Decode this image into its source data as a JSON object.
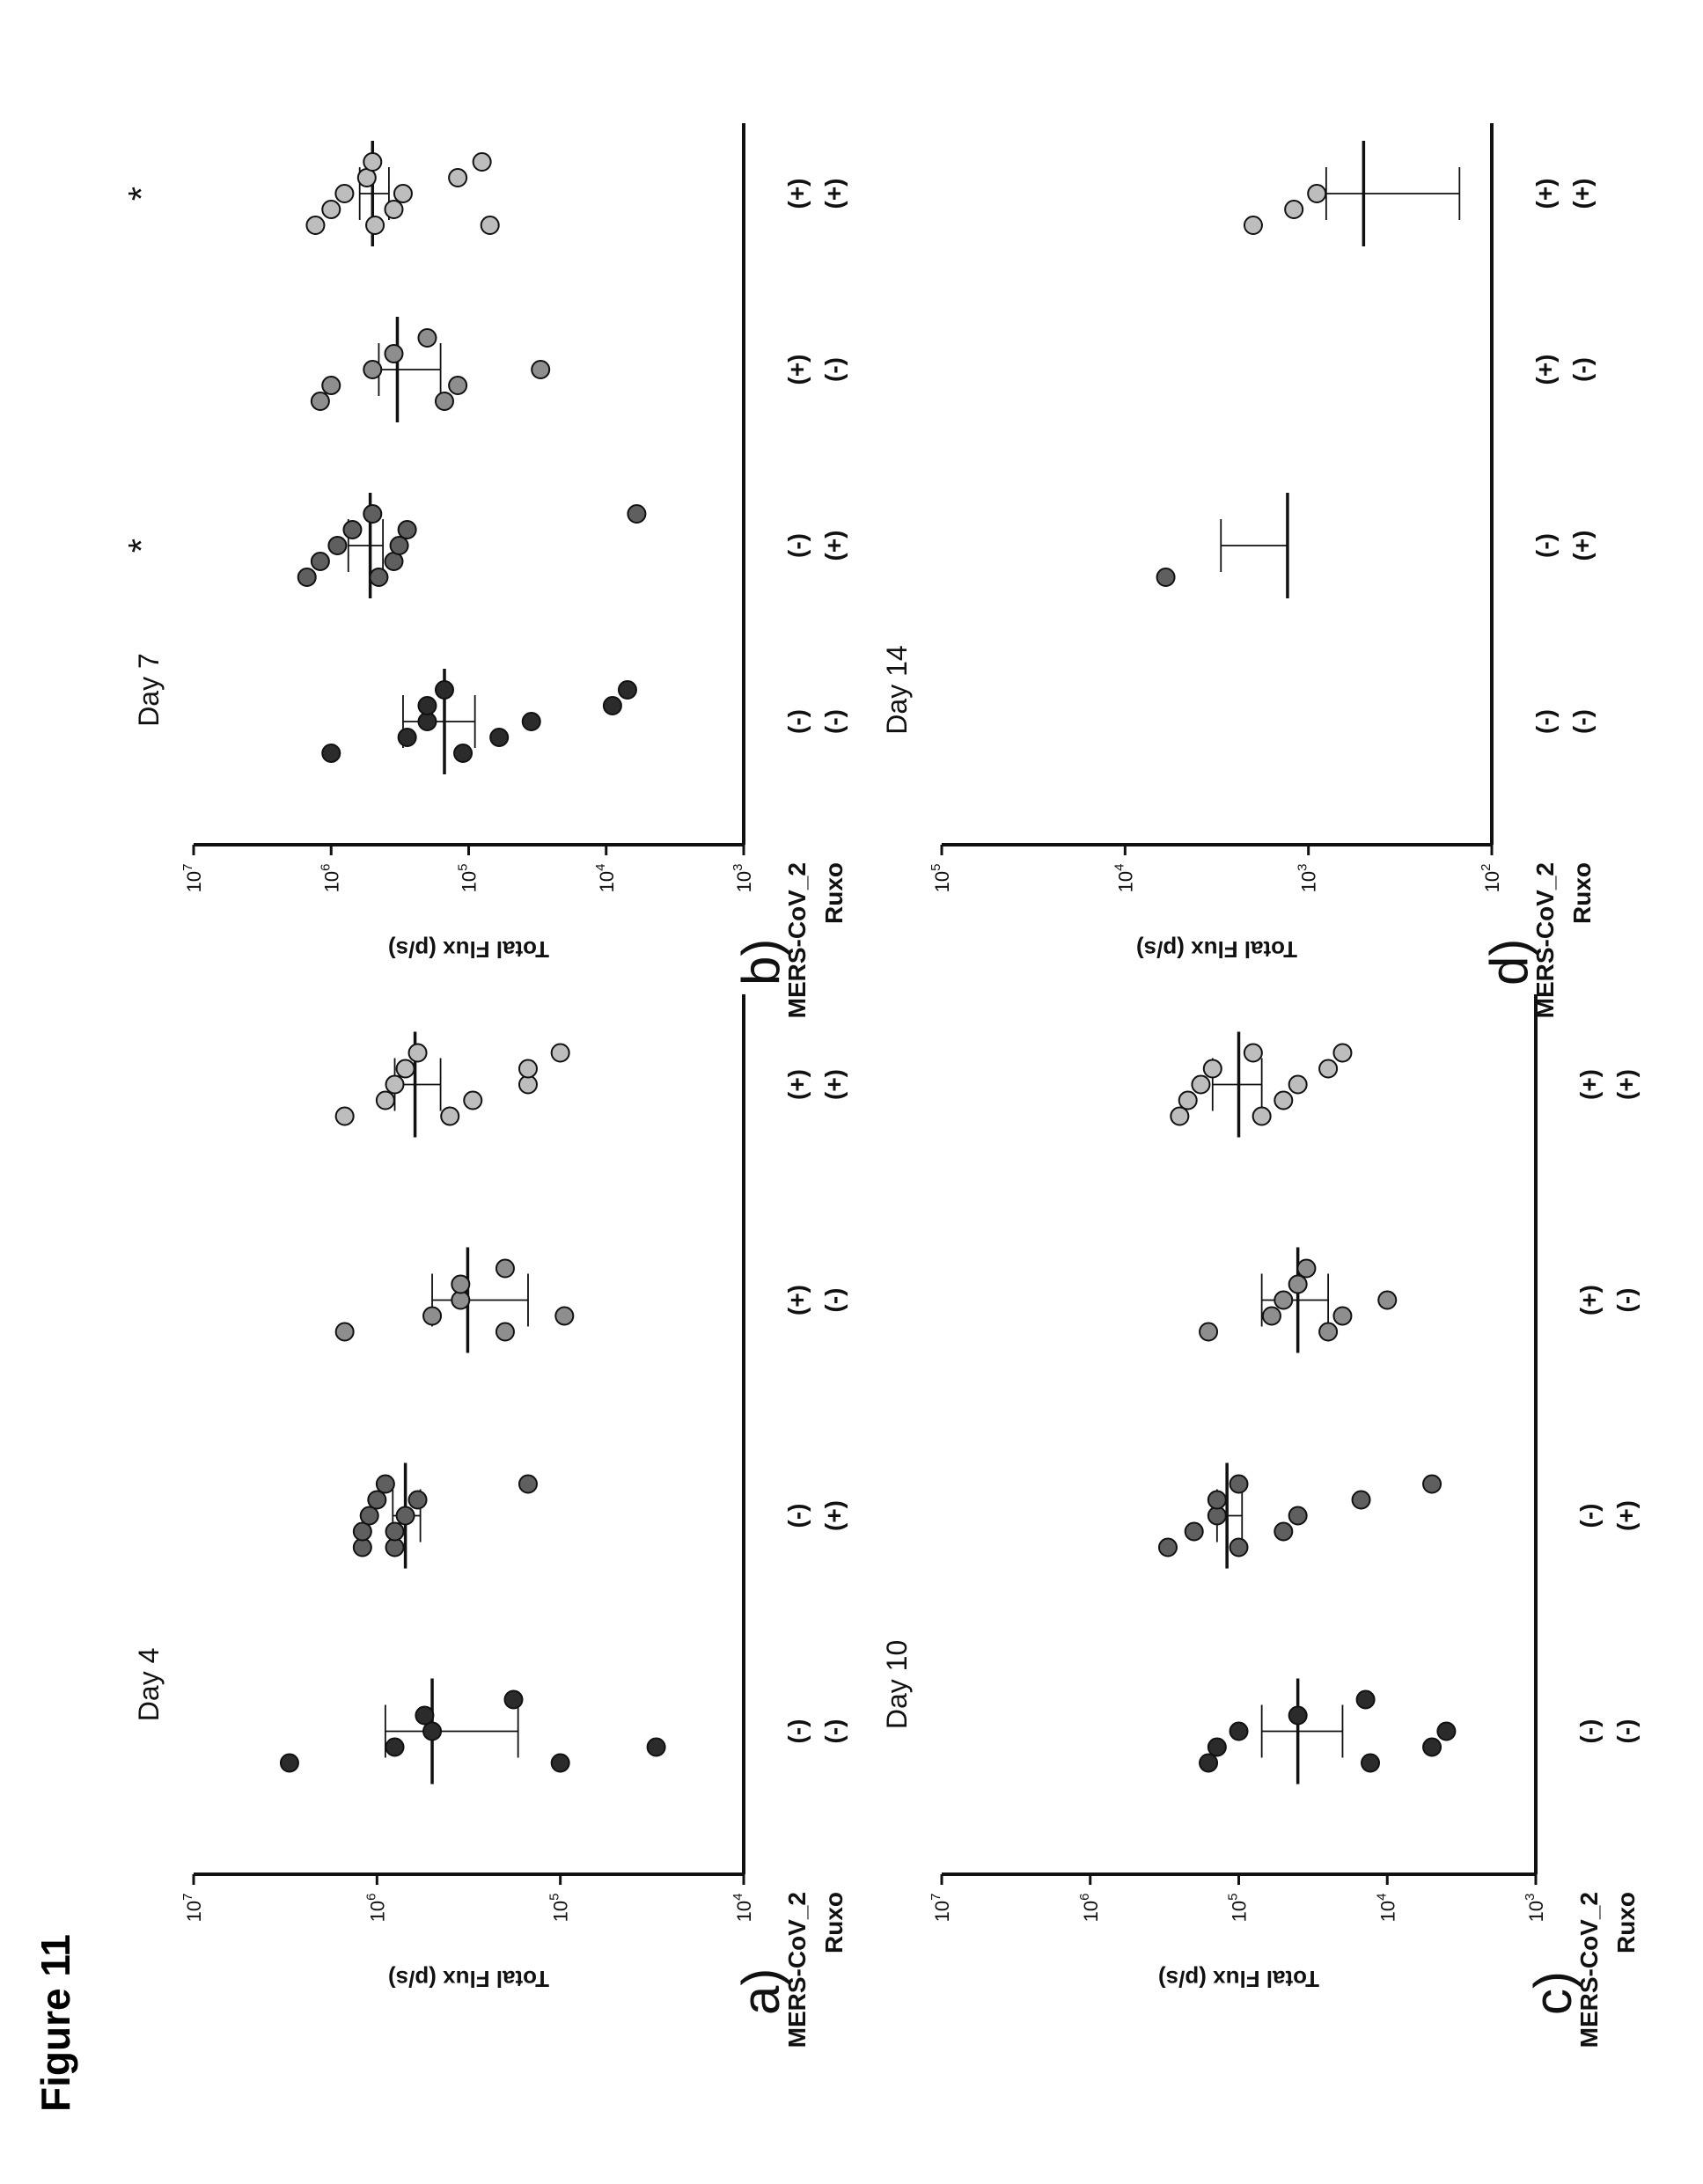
{
  "figure": {
    "title": "Figure 11"
  },
  "colors": {
    "group_fills": [
      "#2b2b2b",
      "#5f5f5f",
      "#8e8e8e",
      "#bdbdbd"
    ]
  },
  "chart_data": [
    {
      "panel": "a)",
      "type": "scatter",
      "title": "Day 4",
      "ylabel": "Total Flux (p/s)",
      "yscale": "log",
      "ylim": [
        10000,
        10000000
      ],
      "yticks": [
        "10^7",
        "10^6",
        "10^5",
        "10^4"
      ],
      "row_labels": [
        "MERS-CoV_2",
        "Ruxo"
      ],
      "categories": [
        {
          "mers": "(-)",
          "ruxo": "(-)",
          "values": [
            3000000,
            800000,
            500000,
            550000,
            180000,
            100000,
            30000
          ],
          "mean": 500000,
          "err_low": 170000,
          "err_high": 900000,
          "significance": ""
        },
        {
          "mers": "(-)",
          "ruxo": "(+)",
          "values": [
            1200000,
            1200000,
            1100000,
            1000000,
            900000,
            800000,
            800000,
            700000,
            600000,
            150000
          ],
          "mean": 700000,
          "err_low": 580000,
          "err_high": 820000,
          "significance": ""
        },
        {
          "mers": "(+)",
          "ruxo": "(-)",
          "values": [
            1500000,
            500000,
            350000,
            350000,
            200000,
            200000,
            95000
          ],
          "mean": 320000,
          "err_low": 150000,
          "err_high": 500000,
          "significance": ""
        },
        {
          "mers": "(+)",
          "ruxo": "(+)",
          "values": [
            1500000,
            900000,
            800000,
            700000,
            600000,
            400000,
            300000,
            150000,
            150000,
            100000
          ],
          "mean": 620000,
          "err_low": 450000,
          "err_high": 800000,
          "significance": ""
        }
      ]
    },
    {
      "panel": "b)",
      "type": "scatter",
      "title": "Day 7",
      "ylabel": "Total Flux (p/s)",
      "yscale": "log",
      "ylim": [
        1000,
        10000000
      ],
      "yticks": [
        "10^7",
        "10^6",
        "10^5",
        "10^4",
        "10^3"
      ],
      "row_labels": [
        "MERS-CoV_2",
        "Ruxo"
      ],
      "categories": [
        {
          "mers": "(-)",
          "ruxo": "(-)",
          "values": [
            1000000,
            280000,
            200000,
            200000,
            150000,
            110000,
            60000,
            35000,
            9000,
            7000
          ],
          "mean": 150000,
          "err_low": 90000,
          "err_high": 300000,
          "significance": ""
        },
        {
          "mers": "(-)",
          "ruxo": "(+)",
          "values": [
            1500000,
            1200000,
            900000,
            700000,
            500000,
            450000,
            350000,
            320000,
            280000,
            6000
          ],
          "mean": 520000,
          "err_low": 420000,
          "err_high": 750000,
          "significance": "*"
        },
        {
          "mers": "(+)",
          "ruxo": "(-)",
          "values": [
            1200000,
            1000000,
            500000,
            350000,
            200000,
            150000,
            120000,
            30000
          ],
          "mean": 330000,
          "err_low": 160000,
          "err_high": 450000,
          "significance": ""
        },
        {
          "mers": "(+)",
          "ruxo": "(+)",
          "values": [
            1300000,
            1000000,
            800000,
            550000,
            500000,
            480000,
            350000,
            300000,
            120000,
            80000,
            70000
          ],
          "mean": 500000,
          "err_low": 380000,
          "err_high": 620000,
          "significance": "*"
        }
      ]
    },
    {
      "panel": "c)",
      "type": "scatter",
      "title": "Day 10",
      "ylabel": "Total Flux (p/s)",
      "yscale": "log",
      "ylim": [
        1000,
        10000000
      ],
      "yticks": [
        "10^7",
        "10^6",
        "10^5",
        "10^4",
        "10^3"
      ],
      "row_labels": [
        "MERS-CoV_2",
        "Ruxo"
      ],
      "categories": [
        {
          "mers": "(-)",
          "ruxo": "(-)",
          "values": [
            160000,
            140000,
            100000,
            40000,
            14000,
            13000,
            5000,
            4000
          ],
          "mean": 40000,
          "err_low": 20000,
          "err_high": 70000,
          "significance": ""
        },
        {
          "mers": "(-)",
          "ruxo": "(+)",
          "values": [
            300000,
            200000,
            140000,
            140000,
            100000,
            100000,
            50000,
            40000,
            15000,
            5000
          ],
          "mean": 120000,
          "err_low": 95000,
          "err_high": 140000,
          "significance": ""
        },
        {
          "mers": "(+)",
          "ruxo": "(-)",
          "values": [
            160000,
            60000,
            50000,
            40000,
            35000,
            25000,
            20000,
            10000
          ],
          "mean": 40000,
          "err_low": 25000,
          "err_high": 70000,
          "significance": ""
        },
        {
          "mers": "(+)",
          "ruxo": "(+)",
          "values": [
            250000,
            220000,
            180000,
            150000,
            80000,
            70000,
            50000,
            40000,
            25000,
            20000
          ],
          "mean": 100000,
          "err_low": 70000,
          "err_high": 150000,
          "significance": ""
        }
      ]
    },
    {
      "panel": "d)",
      "type": "scatter",
      "title": "Day 14",
      "ylabel": "Total Flux (p/s)",
      "yscale": "log",
      "ylim": [
        100,
        100000
      ],
      "yticks": [
        "10^5",
        "10^4",
        "10^3",
        "10^2"
      ],
      "row_labels": [
        "MERS-CoV_2",
        "Ruxo"
      ],
      "categories": [
        {
          "mers": "(-)",
          "ruxo": "(-)",
          "values": [],
          "mean": null,
          "err_low": null,
          "err_high": null,
          "significance": ""
        },
        {
          "mers": "(-)",
          "ruxo": "(+)",
          "values": [
            6000
          ],
          "mean": 1300,
          "err_low": 1300,
          "err_high": 3000,
          "significance": ""
        },
        {
          "mers": "(+)",
          "ruxo": "(-)",
          "values": [],
          "mean": null,
          "err_low": null,
          "err_high": null,
          "significance": ""
        },
        {
          "mers": "(+)",
          "ruxo": "(+)",
          "values": [
            2000,
            1200,
            900
          ],
          "mean": 500,
          "err_low": 150,
          "err_high": 800,
          "significance": ""
        }
      ]
    }
  ]
}
